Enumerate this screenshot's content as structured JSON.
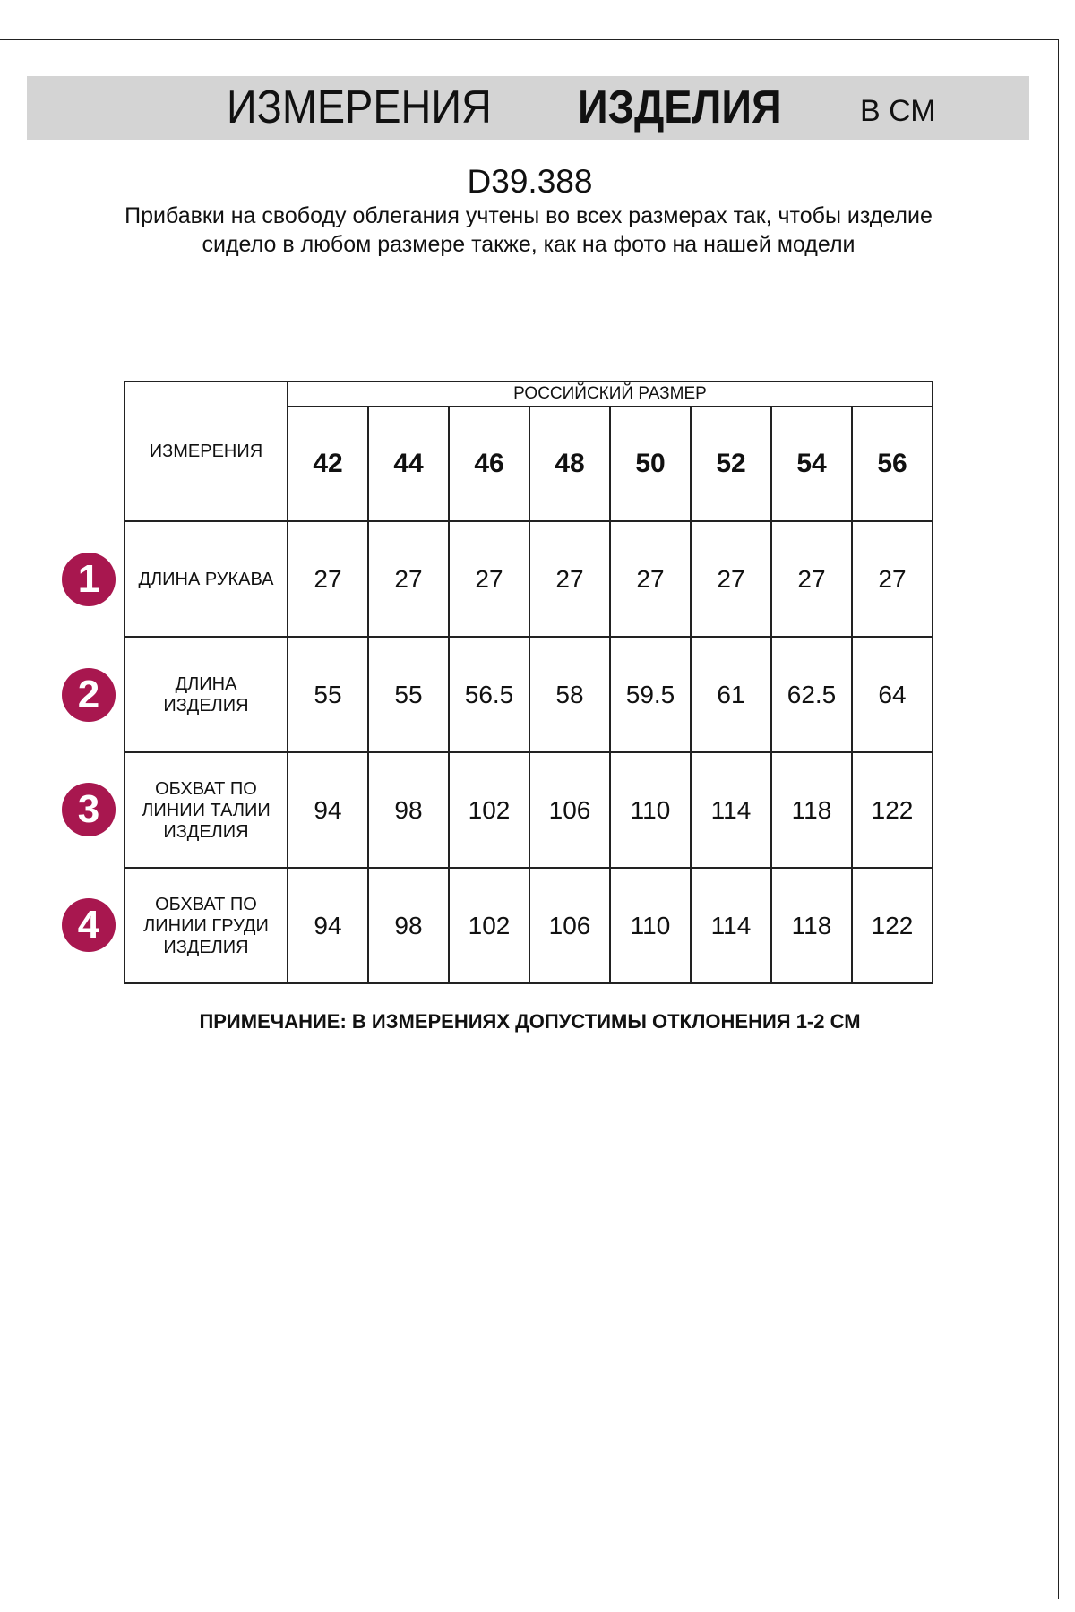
{
  "header": {
    "title_regular": "ИЗМЕРЕНИЯ",
    "title_bold": "ИЗДЕЛИЯ",
    "unit": "В СМ"
  },
  "product_code": "D39.388",
  "description": "Прибавки на свободу облегания учтены во всех размерах так, чтобы изделие сидело в любом размере также, как на фото на нашей модели",
  "table": {
    "corner_label": "ИЗМЕРЕНИЯ",
    "group_header": "РОССИЙСКИЙ РАЗМЕР",
    "sizes": [
      "42",
      "44",
      "46",
      "48",
      "50",
      "52",
      "54",
      "56"
    ],
    "rows": [
      {
        "number": "1",
        "label": "ДЛИНА РУКАВА",
        "values": [
          "27",
          "27",
          "27",
          "27",
          "27",
          "27",
          "27",
          "27"
        ]
      },
      {
        "number": "2",
        "label": "ДЛИНА ИЗДЕЛИЯ",
        "values": [
          "55",
          "55",
          "56.5",
          "58",
          "59.5",
          "61",
          "62.5",
          "64"
        ]
      },
      {
        "number": "3",
        "label": "ОБХВАТ ПО ЛИНИИ ТАЛИИ ИЗДЕЛИЯ",
        "values": [
          "94",
          "98",
          "102",
          "106",
          "110",
          "114",
          "118",
          "122"
        ]
      },
      {
        "number": "4",
        "label": "ОБХВАТ ПО ЛИНИИ ГРУДИ ИЗДЕЛИЯ",
        "values": [
          "94",
          "98",
          "102",
          "106",
          "110",
          "114",
          "118",
          "122"
        ]
      }
    ]
  },
  "note": "ПРИМЕЧАНИЕ: В ИЗМЕРЕНИЯХ ДОПУСТИМЫ ОТКЛОНЕНИЯ 1-2 СМ",
  "colors": {
    "badge": "#a8174f",
    "banner": "#d4d4d4"
  }
}
